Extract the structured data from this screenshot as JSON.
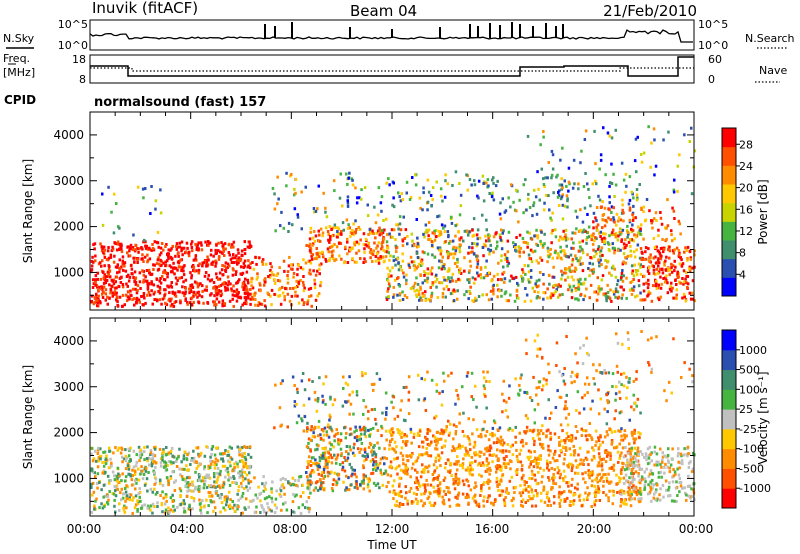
{
  "header": {
    "station": "Inuvik (fitACF)",
    "beam": "Beam 04",
    "date": "21/Feb/2010"
  },
  "top_panels": {
    "nsky_label": "N.Sky",
    "nsearch_label": "N.Search",
    "nsky_ticks": [
      "10^5",
      "10^0"
    ],
    "nsearch_ticks": [
      "10^5",
      "10^0"
    ],
    "freq_label_line1": "Freq.",
    "freq_label_line2": "[MHz]",
    "freq_ticks": [
      "18",
      "8"
    ],
    "nave_label": "Nave",
    "nave_ticks": [
      "60",
      "0"
    ],
    "cpid_label": "CPID",
    "cpid_value": "normalsound (fast) 157"
  },
  "colors": {
    "power": [
      "#0000ff",
      "#2a4fb0",
      "#3f8f6f",
      "#46b441",
      "#c8d400",
      "#ffc800",
      "#ff8c00",
      "#ff5000",
      "#ff0000"
    ],
    "velocity": [
      "#ff0000",
      "#ff5000",
      "#ff8c00",
      "#ffc800",
      "#c0c0c0",
      "#46b441",
      "#3f8f6f",
      "#2a4fb0",
      "#0000ff"
    ]
  },
  "chart_data": [
    {
      "type": "heatmap",
      "panel": "power",
      "ylabel": "Slant Range [km]",
      "ylim": [
        180,
        4500
      ],
      "yticks": [
        "1000",
        "2000",
        "3000",
        "4000"
      ],
      "colorbar_label": "Power [dB]",
      "colorbar_ticks": [
        "4",
        "8",
        "12",
        "16",
        "20",
        "24",
        "28"
      ],
      "colorbar_range": [
        0,
        31
      ]
    },
    {
      "type": "heatmap",
      "panel": "velocity",
      "ylabel": "Slant Range [km]",
      "ylim": [
        180,
        4500
      ],
      "yticks": [
        "1000",
        "2000",
        "3000",
        "4000"
      ],
      "colorbar_label": "Velocity [m s⁻¹]",
      "colorbar_ticks": [
        "-1000",
        "-500",
        "-100",
        "-25",
        "25",
        "100",
        "500",
        "1000"
      ]
    }
  ],
  "xaxis": {
    "label": "Time UT",
    "ticks": [
      "00:00",
      "04:00",
      "08:00",
      "12:00",
      "16:00",
      "20:00",
      "00:00"
    ]
  }
}
